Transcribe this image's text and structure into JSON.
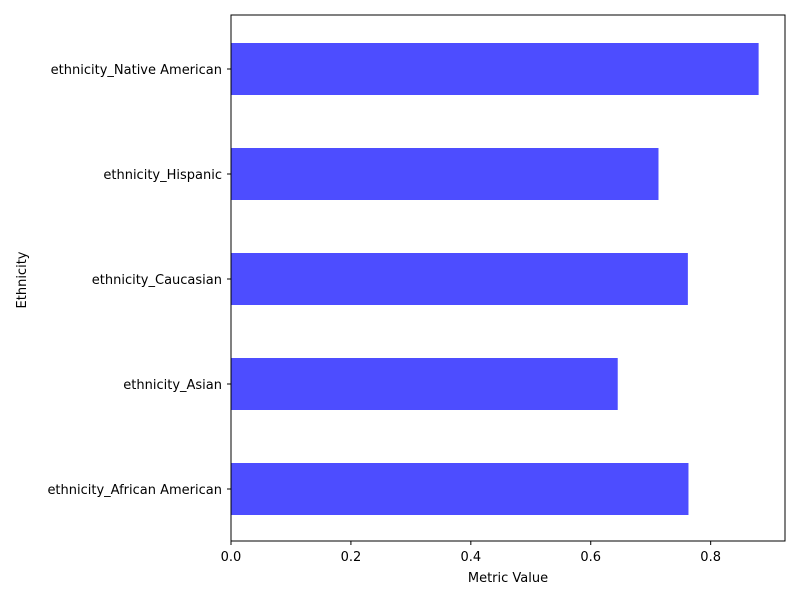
{
  "chart_data": {
    "type": "bar",
    "orientation": "horizontal",
    "categories": [
      "ethnicity_African American",
      "ethnicity_Asian",
      "ethnicity_Caucasian",
      "ethnicity_Hispanic",
      "ethnicity_Native American"
    ],
    "values": [
      0.763,
      0.645,
      0.762,
      0.713,
      0.88
    ],
    "xlabel": "Metric Value",
    "ylabel": "Ethnicity",
    "xlim": [
      0.0,
      0.924
    ],
    "xticks": [
      "0.0",
      "0.2",
      "0.4",
      "0.6",
      "0.8"
    ],
    "bar_color": "#4d4dff",
    "grid": false,
    "legend": "none"
  }
}
